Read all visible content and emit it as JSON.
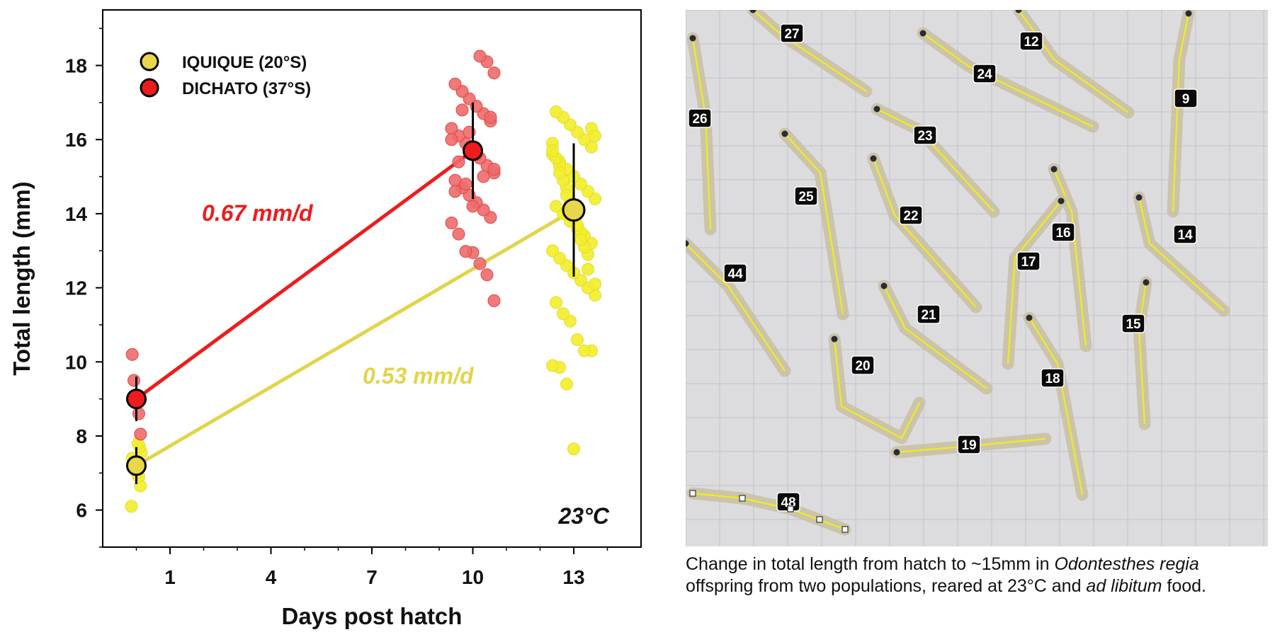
{
  "chart_data": {
    "type": "scatter",
    "xlabel": "Days post hatch",
    "ylabel": "Total length (mm)",
    "x_ticks": [
      1,
      4,
      7,
      10,
      13
    ],
    "y_ticks": [
      6,
      8,
      10,
      12,
      14,
      16,
      18
    ],
    "xlim": [
      -1,
      15
    ],
    "ylim": [
      5.0,
      19.5
    ],
    "annotation_temperature": "23°C",
    "legend": [
      {
        "name": "IQUIQUE (20°S)",
        "color": "#e8d64b"
      },
      {
        "name": "DICHATO (37°S)",
        "color": "#ee1c1c"
      }
    ],
    "series": [
      {
        "name": "IQUIQUE (20°S)",
        "color": "#f2ee28",
        "mean_color": "#e8d64b",
        "line_color": "#e2d44a",
        "means": [
          {
            "x": 0,
            "y": 7.2,
            "sd": 0.5
          },
          {
            "x": 13,
            "y": 14.1,
            "sd": 1.8
          }
        ],
        "rate_label": "0.53 mm/d",
        "points": [
          {
            "x": 0,
            "y": 6.1
          },
          {
            "x": 0,
            "y": 6.65
          },
          {
            "x": 0,
            "y": 6.9
          },
          {
            "x": 0,
            "y": 7.0
          },
          {
            "x": 0,
            "y": 7.1
          },
          {
            "x": 0,
            "y": 7.25
          },
          {
            "x": 0,
            "y": 7.4
          },
          {
            "x": 0,
            "y": 7.55
          },
          {
            "x": 0,
            "y": 7.7
          },
          {
            "x": 0,
            "y": 7.8
          },
          {
            "x": 13,
            "y": 7.65
          },
          {
            "x": 13,
            "y": 9.4
          },
          {
            "x": 13,
            "y": 9.85
          },
          {
            "x": 13,
            "y": 9.9
          },
          {
            "x": 13,
            "y": 10.3
          },
          {
            "x": 13,
            "y": 10.3
          },
          {
            "x": 13,
            "y": 10.6
          },
          {
            "x": 13,
            "y": 11.1
          },
          {
            "x": 13,
            "y": 11.3
          },
          {
            "x": 13,
            "y": 11.6
          },
          {
            "x": 13,
            "y": 11.8
          },
          {
            "x": 13,
            "y": 12.0
          },
          {
            "x": 13,
            "y": 12.2
          },
          {
            "x": 13,
            "y": 12.4
          },
          {
            "x": 13,
            "y": 12.6
          },
          {
            "x": 13,
            "y": 12.8
          },
          {
            "x": 13,
            "y": 13.0
          },
          {
            "x": 13,
            "y": 13.2
          },
          {
            "x": 13,
            "y": 13.4
          },
          {
            "x": 13,
            "y": 13.6
          },
          {
            "x": 13,
            "y": 13.8
          },
          {
            "x": 13,
            "y": 14.0
          },
          {
            "x": 13,
            "y": 14.2
          },
          {
            "x": 13,
            "y": 14.4
          },
          {
            "x": 13,
            "y": 14.6
          },
          {
            "x": 13,
            "y": 14.8
          },
          {
            "x": 13,
            "y": 15.0
          },
          {
            "x": 13,
            "y": 15.2
          },
          {
            "x": 13,
            "y": 15.4
          },
          {
            "x": 13,
            "y": 15.6
          },
          {
            "x": 13,
            "y": 15.8
          },
          {
            "x": 13,
            "y": 16.0
          },
          {
            "x": 13,
            "y": 16.2
          },
          {
            "x": 13,
            "y": 16.4
          },
          {
            "x": 13,
            "y": 16.6
          },
          {
            "x": 13,
            "y": 16.75
          },
          {
            "x": 13,
            "y": 12.1
          },
          {
            "x": 13,
            "y": 12.9
          },
          {
            "x": 13,
            "y": 13.5
          },
          {
            "x": 13,
            "y": 14.1
          },
          {
            "x": 13,
            "y": 14.7
          },
          {
            "x": 13,
            "y": 15.3
          },
          {
            "x": 13,
            "y": 15.9
          },
          {
            "x": 13,
            "y": 16.3
          },
          {
            "x": 13,
            "y": 13.1
          },
          {
            "x": 13,
            "y": 13.7
          },
          {
            "x": 13,
            "y": 14.3
          },
          {
            "x": 13,
            "y": 14.9
          },
          {
            "x": 13,
            "y": 15.5
          },
          {
            "x": 13,
            "y": 16.1
          },
          {
            "x": 13,
            "y": 12.5
          },
          {
            "x": 13,
            "y": 13.3
          },
          {
            "x": 13,
            "y": 13.9
          },
          {
            "x": 13,
            "y": 14.5
          },
          {
            "x": 13,
            "y": 15.1
          },
          {
            "x": 13,
            "y": 15.7
          }
        ]
      },
      {
        "name": "DICHATO (37°S)",
        "color": "#ee6a6a",
        "mean_color": "#ee1c1c",
        "line_color": "#ee1c1c",
        "means": [
          {
            "x": 0,
            "y": 9.0,
            "sd": 0.6
          },
          {
            "x": 10,
            "y": 15.7,
            "sd": 1.3
          }
        ],
        "rate_label": "0.67 mm/d",
        "points": [
          {
            "x": 0,
            "y": 8.05
          },
          {
            "x": 0,
            "y": 8.6
          },
          {
            "x": 0,
            "y": 8.9
          },
          {
            "x": 0,
            "y": 9.1
          },
          {
            "x": 0,
            "y": 9.5
          },
          {
            "x": 0,
            "y": 10.2
          },
          {
            "x": 10,
            "y": 11.65
          },
          {
            "x": 10,
            "y": 12.35
          },
          {
            "x": 10,
            "y": 12.65
          },
          {
            "x": 10,
            "y": 12.95
          },
          {
            "x": 10,
            "y": 12.98
          },
          {
            "x": 10,
            "y": 13.45
          },
          {
            "x": 10,
            "y": 13.75
          },
          {
            "x": 10,
            "y": 13.9
          },
          {
            "x": 10,
            "y": 14.1
          },
          {
            "x": 10,
            "y": 14.3
          },
          {
            "x": 10,
            "y": 14.5
          },
          {
            "x": 10,
            "y": 14.7
          },
          {
            "x": 10,
            "y": 14.9
          },
          {
            "x": 10,
            "y": 15.1
          },
          {
            "x": 10,
            "y": 15.3
          },
          {
            "x": 10,
            "y": 15.5
          },
          {
            "x": 10,
            "y": 15.7
          },
          {
            "x": 10,
            "y": 15.9
          },
          {
            "x": 10,
            "y": 16.1
          },
          {
            "x": 10,
            "y": 16.3
          },
          {
            "x": 10,
            "y": 16.5
          },
          {
            "x": 10,
            "y": 16.7
          },
          {
            "x": 10,
            "y": 16.9
          },
          {
            "x": 10,
            "y": 17.1
          },
          {
            "x": 10,
            "y": 17.3
          },
          {
            "x": 10,
            "y": 17.5
          },
          {
            "x": 10,
            "y": 17.8
          },
          {
            "x": 10,
            "y": 18.1
          },
          {
            "x": 10,
            "y": 18.25
          },
          {
            "x": 10,
            "y": 14.2
          },
          {
            "x": 10,
            "y": 14.8
          },
          {
            "x": 10,
            "y": 15.4
          },
          {
            "x": 10,
            "y": 16.0
          },
          {
            "x": 10,
            "y": 16.6
          },
          {
            "x": 10,
            "y": 15.0
          },
          {
            "x": 10,
            "y": 15.6
          },
          {
            "x": 10,
            "y": 16.2
          },
          {
            "x": 10,
            "y": 16.8
          },
          {
            "x": 10,
            "y": 14.6
          },
          {
            "x": 10,
            "y": 15.2
          }
        ]
      }
    ]
  },
  "photo": {
    "fish_labels": [
      "27",
      "12",
      "24",
      "9",
      "26",
      "23",
      "25",
      "22",
      "16",
      "14",
      "17",
      "44",
      "21",
      "15",
      "20",
      "18",
      "19",
      "48"
    ]
  },
  "caption": {
    "text_1": "Change in total length from hatch to ~15mm in ",
    "species": "Odontesthes regia",
    "text_2": " offspring from two populations, reared at 23°C and ",
    "feeding": "ad libitum",
    "text_3": " food."
  }
}
